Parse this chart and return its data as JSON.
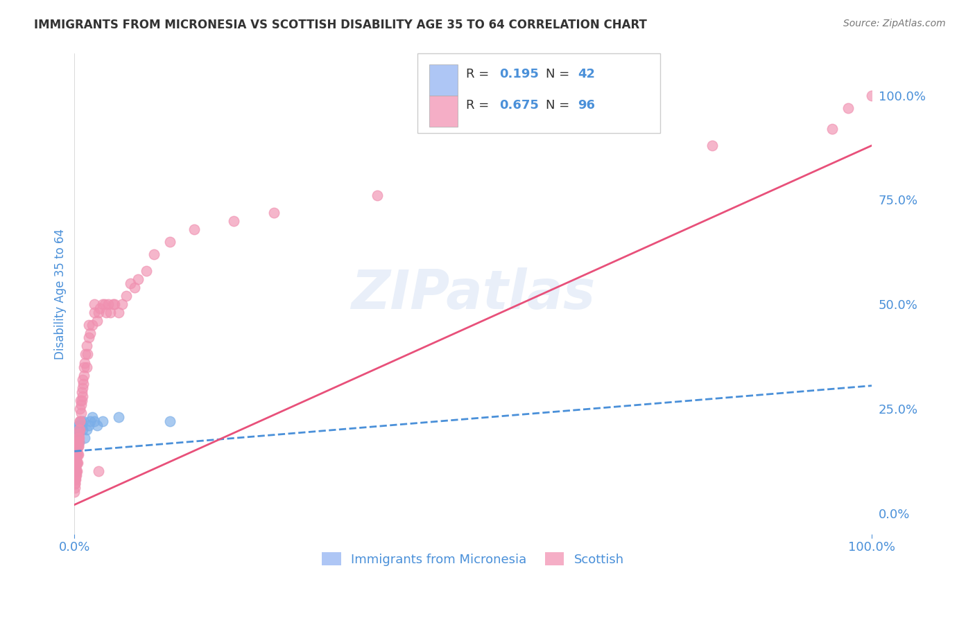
{
  "title": "IMMIGRANTS FROM MICRONESIA VS SCOTTISH DISABILITY AGE 35 TO 64 CORRELATION CHART",
  "source": "Source: ZipAtlas.com",
  "ylabel_left": "Disability Age 35 to 64",
  "legend_bottom": [
    "Immigrants from Micronesia",
    "Scottish"
  ],
  "legend_box_colors": [
    "#aec6f5",
    "#f5aec6"
  ],
  "series1": {
    "name": "Immigrants from Micronesia",
    "R": 0.195,
    "N": 42,
    "color": "#7baee8",
    "line_color": "#4a90d9",
    "line_style": "--",
    "x": [
      0.0002,
      0.0003,
      0.0005,
      0.0006,
      0.0008,
      0.001,
      0.001,
      0.0012,
      0.0013,
      0.0015,
      0.0016,
      0.0018,
      0.002,
      0.002,
      0.0022,
      0.0025,
      0.003,
      0.003,
      0.003,
      0.0035,
      0.004,
      0.004,
      0.0045,
      0.005,
      0.005,
      0.006,
      0.006,
      0.007,
      0.008,
      0.009,
      0.01,
      0.011,
      0.013,
      0.015,
      0.018,
      0.02,
      0.022,
      0.025,
      0.028,
      0.035,
      0.055,
      0.12
    ],
    "y": [
      0.13,
      0.14,
      0.12,
      0.11,
      0.15,
      0.1,
      0.16,
      0.13,
      0.17,
      0.12,
      0.14,
      0.13,
      0.12,
      0.15,
      0.16,
      0.14,
      0.17,
      0.18,
      0.2,
      0.16,
      0.17,
      0.2,
      0.19,
      0.18,
      0.21,
      0.17,
      0.21,
      0.2,
      0.22,
      0.21,
      0.2,
      0.22,
      0.18,
      0.2,
      0.21,
      0.22,
      0.23,
      0.22,
      0.21,
      0.22,
      0.23,
      0.22
    ]
  },
  "series2": {
    "name": "Scottish",
    "R": 0.675,
    "N": 96,
    "color": "#f090b0",
    "line_color": "#e8507a",
    "line_style": "-",
    "x": [
      0.0001,
      0.0002,
      0.0003,
      0.0004,
      0.0005,
      0.0006,
      0.0007,
      0.0008,
      0.0009,
      0.001,
      0.001,
      0.001,
      0.0012,
      0.0013,
      0.0014,
      0.0015,
      0.0016,
      0.0017,
      0.0018,
      0.002,
      0.002,
      0.002,
      0.0022,
      0.0025,
      0.003,
      0.003,
      0.003,
      0.003,
      0.0032,
      0.0035,
      0.004,
      0.004,
      0.004,
      0.0042,
      0.0045,
      0.005,
      0.005,
      0.005,
      0.0055,
      0.006,
      0.006,
      0.006,
      0.0065,
      0.007,
      0.007,
      0.007,
      0.0075,
      0.008,
      0.008,
      0.009,
      0.009,
      0.01,
      0.01,
      0.01,
      0.011,
      0.012,
      0.012,
      0.013,
      0.014,
      0.015,
      0.015,
      0.016,
      0.018,
      0.018,
      0.02,
      0.022,
      0.025,
      0.025,
      0.028,
      0.03,
      0.03,
      0.032,
      0.035,
      0.038,
      0.04,
      0.042,
      0.045,
      0.048,
      0.05,
      0.055,
      0.06,
      0.065,
      0.07,
      0.075,
      0.08,
      0.09,
      0.1,
      0.12,
      0.15,
      0.2,
      0.25,
      0.38,
      0.8,
      0.95,
      0.97,
      1.0
    ],
    "y": [
      0.05,
      0.06,
      0.07,
      0.07,
      0.08,
      0.09,
      0.08,
      0.09,
      0.1,
      0.08,
      0.1,
      0.12,
      0.09,
      0.1,
      0.11,
      0.1,
      0.12,
      0.13,
      0.11,
      0.09,
      0.1,
      0.12,
      0.13,
      0.14,
      0.1,
      0.12,
      0.14,
      0.16,
      0.15,
      0.17,
      0.12,
      0.14,
      0.17,
      0.18,
      0.16,
      0.14,
      0.16,
      0.18,
      0.17,
      0.18,
      0.19,
      0.2,
      0.22,
      0.2,
      0.22,
      0.25,
      0.27,
      0.24,
      0.26,
      0.27,
      0.29,
      0.28,
      0.3,
      0.32,
      0.31,
      0.33,
      0.35,
      0.36,
      0.38,
      0.35,
      0.4,
      0.38,
      0.42,
      0.45,
      0.43,
      0.45,
      0.48,
      0.5,
      0.46,
      0.48,
      0.1,
      0.49,
      0.5,
      0.5,
      0.48,
      0.5,
      0.48,
      0.5,
      0.5,
      0.48,
      0.5,
      0.52,
      0.55,
      0.54,
      0.56,
      0.58,
      0.62,
      0.65,
      0.68,
      0.7,
      0.72,
      0.76,
      0.88,
      0.92,
      0.97,
      1.0
    ]
  },
  "watermark": "ZIPatlas",
  "bg_color": "#ffffff",
  "grid_color": "#e8e8e8",
  "title_color": "#333333",
  "axis_label_color": "#4a90d9",
  "right_axis_color": "#4a90d9",
  "xlim": [
    0.0,
    1.0
  ],
  "ylim": [
    -0.05,
    1.1
  ],
  "trend1_x0": 0.0,
  "trend1_x1": 1.0,
  "trend1_y0": 0.148,
  "trend1_y1": 0.305,
  "trend2_x0": 0.0,
  "trend2_x1": 1.0,
  "trend2_y0": 0.02,
  "trend2_y1": 0.88
}
